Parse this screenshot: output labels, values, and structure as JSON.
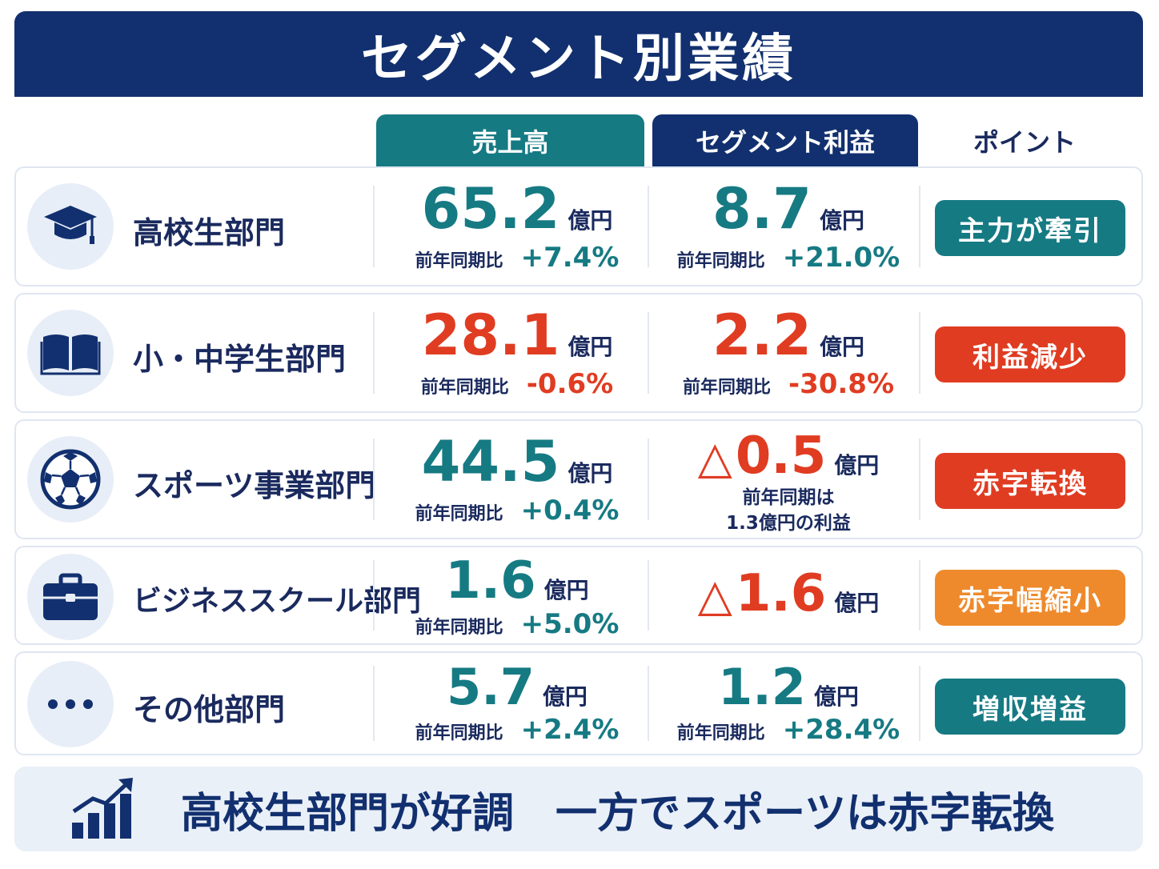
{
  "title": "セグメント別業績",
  "headers": {
    "sales": "売上高",
    "profit": "セグメント利益",
    "point": "ポイント"
  },
  "colors": {
    "navy": "#12306f",
    "teal": "#167a83",
    "red": "#e03c22",
    "orange": "#ee8a2c"
  },
  "rows": [
    {
      "name": "高校生部門",
      "icon": "graduation-cap-icon",
      "sales": {
        "value": "65.2",
        "unit": "億円",
        "yoy_label": "前年同期比",
        "yoy": "+7.4%"
      },
      "profit": {
        "value": "8.7",
        "unit": "億円",
        "yoy_label": "前年同期比",
        "yoy": "+21.0%"
      },
      "point": "主力が牽引",
      "point_color": "#167a83"
    },
    {
      "name": "小・中学生部門",
      "icon": "book-icon",
      "sales": {
        "value": "28.1",
        "unit": "億円",
        "yoy_label": "前年同期比",
        "yoy": "-0.6%"
      },
      "profit": {
        "value": "2.2",
        "unit": "億円",
        "yoy_label": "前年同期比",
        "yoy": "-30.8%"
      },
      "point": "利益減少",
      "point_color": "#e03c22"
    },
    {
      "name": "スポーツ事業部門",
      "icon": "soccer-ball-icon",
      "sales": {
        "value": "44.5",
        "unit": "億円",
        "yoy_label": "前年同期比",
        "yoy": "+0.4%"
      },
      "profit": {
        "triangle": "△",
        "value": "0.5",
        "unit": "億円",
        "note1": "前年同期は",
        "note2": "1.3億円の利益"
      },
      "point": "赤字転換",
      "point_color": "#e03c22"
    },
    {
      "name": "ビジネススクール部門",
      "icon": "briefcase-icon",
      "sales": {
        "value": "1.6",
        "unit": "億円",
        "yoy_label": "前年同期比",
        "yoy": "+5.0%"
      },
      "profit": {
        "triangle": "△",
        "value": "1.6",
        "unit": "億円"
      },
      "point": "赤字幅縮小",
      "point_color": "#ee8a2c"
    },
    {
      "name": "その他部門",
      "icon": "more-dots-icon",
      "sales": {
        "value": "5.7",
        "unit": "億円",
        "yoy_label": "前年同期比",
        "yoy": "+2.4%"
      },
      "profit": {
        "value": "1.2",
        "unit": "億円",
        "yoy_label": "前年同期比",
        "yoy": "+28.4%"
      },
      "point": "増収増益",
      "point_color": "#167a83"
    }
  ],
  "summary": {
    "icon": "growth-chart-icon",
    "text": "高校生部門が好調　一方でスポーツは赤字転換"
  }
}
